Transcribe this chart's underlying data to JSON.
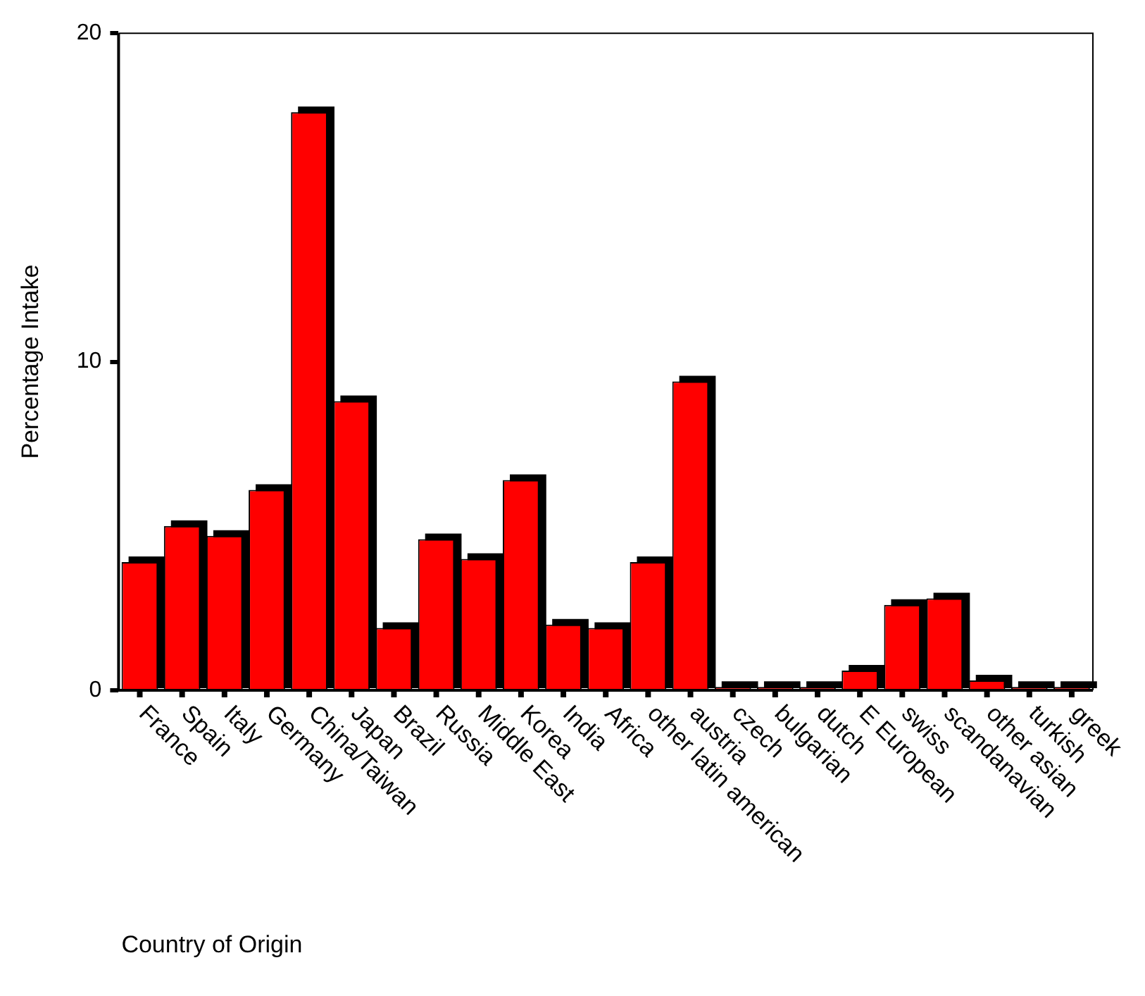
{
  "chart_data": {
    "type": "bar",
    "xlabel": "Country of Origin",
    "ylabel": "Percentage Intake",
    "categories": [
      "France",
      "Spain",
      "Italy",
      "Germany",
      "China/Taiwan",
      "Japan",
      "Brazil",
      "Russia",
      "Middle East",
      "Korea",
      "India",
      "Africa",
      "other latin american",
      "austria",
      "czech",
      "bulgarian",
      "dutch",
      "E European",
      "swiss",
      "scandanavian",
      "other asian",
      "turkish",
      "greek"
    ],
    "values": [
      3.9,
      5.0,
      4.7,
      6.1,
      17.6,
      8.8,
      1.9,
      4.6,
      4.0,
      6.4,
      2.0,
      1.9,
      3.9,
      9.4,
      0.1,
      0.1,
      0.1,
      0.6,
      2.6,
      2.8,
      0.3,
      0.1,
      0.1
    ],
    "color": "#ff0000",
    "ylim": [
      0,
      20
    ],
    "yticks": [
      0,
      10,
      20
    ],
    "grid": false,
    "legend": false
  }
}
